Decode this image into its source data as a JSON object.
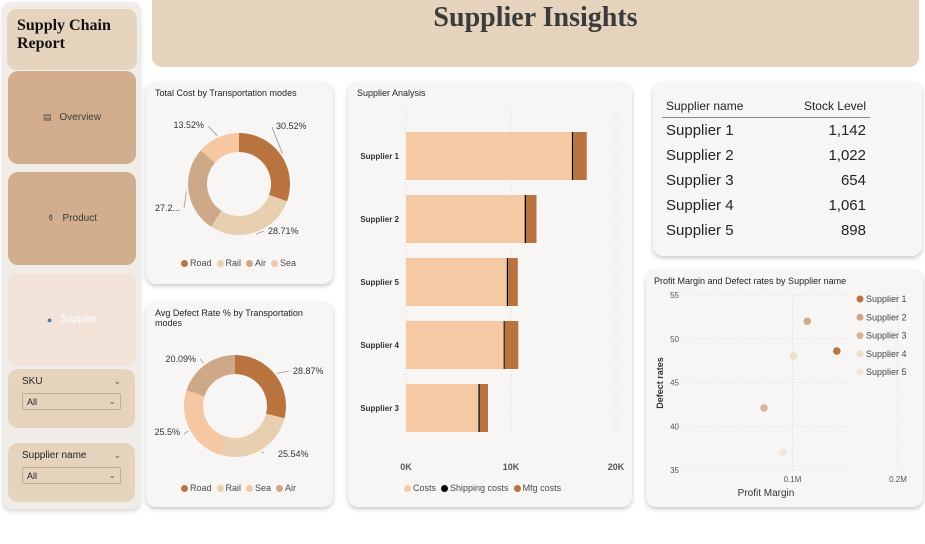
{
  "sidebar": {
    "report_title": "Supply Chain Report",
    "nav": [
      {
        "label": "Overview",
        "icon": "document-icon"
      },
      {
        "label": "Product",
        "icon": "cart-icon"
      },
      {
        "label": "Supplier",
        "icon": "people-icon"
      }
    ],
    "slicers": [
      {
        "label": "SKU",
        "value": "All"
      },
      {
        "label": "Supplier name",
        "value": "All"
      }
    ]
  },
  "header": {
    "title": "Supplier Insights"
  },
  "colors": {
    "road": "#b8733f",
    "rail": "#e8cfb0",
    "air": "#cda98a",
    "sea": "#f5c7a2",
    "costs": "#f5c9a3",
    "shipping": "#000000",
    "mfg": "#b8733f"
  },
  "chart_data": [
    {
      "type": "pie",
      "title": "Total Cost by Transportation modes",
      "variant": "donut",
      "slices": [
        {
          "name": "Road",
          "value": 30.52,
          "label": "30.52%"
        },
        {
          "name": "Rail",
          "value": 28.71,
          "label": "28.71%"
        },
        {
          "name": "Air",
          "value": 27.25,
          "label": "27.2..."
        },
        {
          "name": "Sea",
          "value": 13.52,
          "label": "13.52%"
        }
      ],
      "legend": [
        "Road",
        "Rail",
        "Air",
        "Sea"
      ]
    },
    {
      "type": "pie",
      "title": "Avg Defect Rate % by Transportation modes",
      "variant": "donut",
      "slices": [
        {
          "name": "Road",
          "value": 28.87,
          "label": "28.87%"
        },
        {
          "name": "Rail",
          "value": 25.54,
          "label": "25.54%"
        },
        {
          "name": "Sea",
          "value": 25.5,
          "label": "25.5%"
        },
        {
          "name": "Air",
          "value": 20.09,
          "label": "20.09%"
        }
      ],
      "legend": [
        "Road",
        "Rail",
        "Sea",
        "Air"
      ]
    },
    {
      "type": "bar",
      "orientation": "horizontal",
      "stacked": true,
      "title": "Supplier Analysis",
      "categories": [
        "Supplier 1",
        "Supplier 2",
        "Supplier 5",
        "Supplier 4",
        "Supplier 3"
      ],
      "series": [
        {
          "name": "Costs",
          "values": [
            15800,
            11300,
            9600,
            9300,
            6900
          ]
        },
        {
          "name": "Shipping costs",
          "values": [
            128,
            128,
            116,
            93,
            128
          ]
        },
        {
          "name": "Mfg costs",
          "values": [
            1290,
            1000,
            930,
            1300,
            780
          ]
        }
      ],
      "xlim": [
        0,
        20000
      ],
      "xticks": [
        "0K",
        "10K",
        "20K"
      ],
      "legend": [
        "Costs",
        "Shipping costs",
        "Mfg costs"
      ]
    },
    {
      "type": "table",
      "columns": [
        "Supplier name",
        "Stock Level"
      ],
      "rows": [
        [
          "Supplier 1",
          "1,142"
        ],
        [
          "Supplier 2",
          "1,022"
        ],
        [
          "Supplier 3",
          "654"
        ],
        [
          "Supplier 4",
          "1,061"
        ],
        [
          "Supplier 5",
          "898"
        ]
      ]
    },
    {
      "type": "scatter",
      "title": "Profit Margin and Defect rates by Supplier name",
      "xlabel": "Profit Margin",
      "ylabel": "Defect rates",
      "xlim": [
        0,
        0.2
      ],
      "ylim": [
        35,
        55
      ],
      "xticks": [
        "0.1M",
        "0.2M"
      ],
      "yticks": [
        "35",
        "40",
        "45",
        "50",
        "55"
      ],
      "points": [
        {
          "name": "Supplier 1",
          "x": 0.142,
          "y": 48.6
        },
        {
          "name": "Supplier 2",
          "x": 0.114,
          "y": 52.0
        },
        {
          "name": "Supplier 3",
          "x": 0.073,
          "y": 42.1
        },
        {
          "name": "Supplier 4",
          "x": 0.101,
          "y": 48.0
        },
        {
          "name": "Supplier 5",
          "x": 0.091,
          "y": 37.0
        }
      ],
      "point_colors": [
        "#b8733f",
        "#cda98a",
        "#d9b597",
        "#eedfcc",
        "#f4e6d8"
      ],
      "legend": [
        "Supplier 1",
        "Supplier 2",
        "Supplier 3",
        "Supplier 4",
        "Supplier 5"
      ]
    }
  ]
}
